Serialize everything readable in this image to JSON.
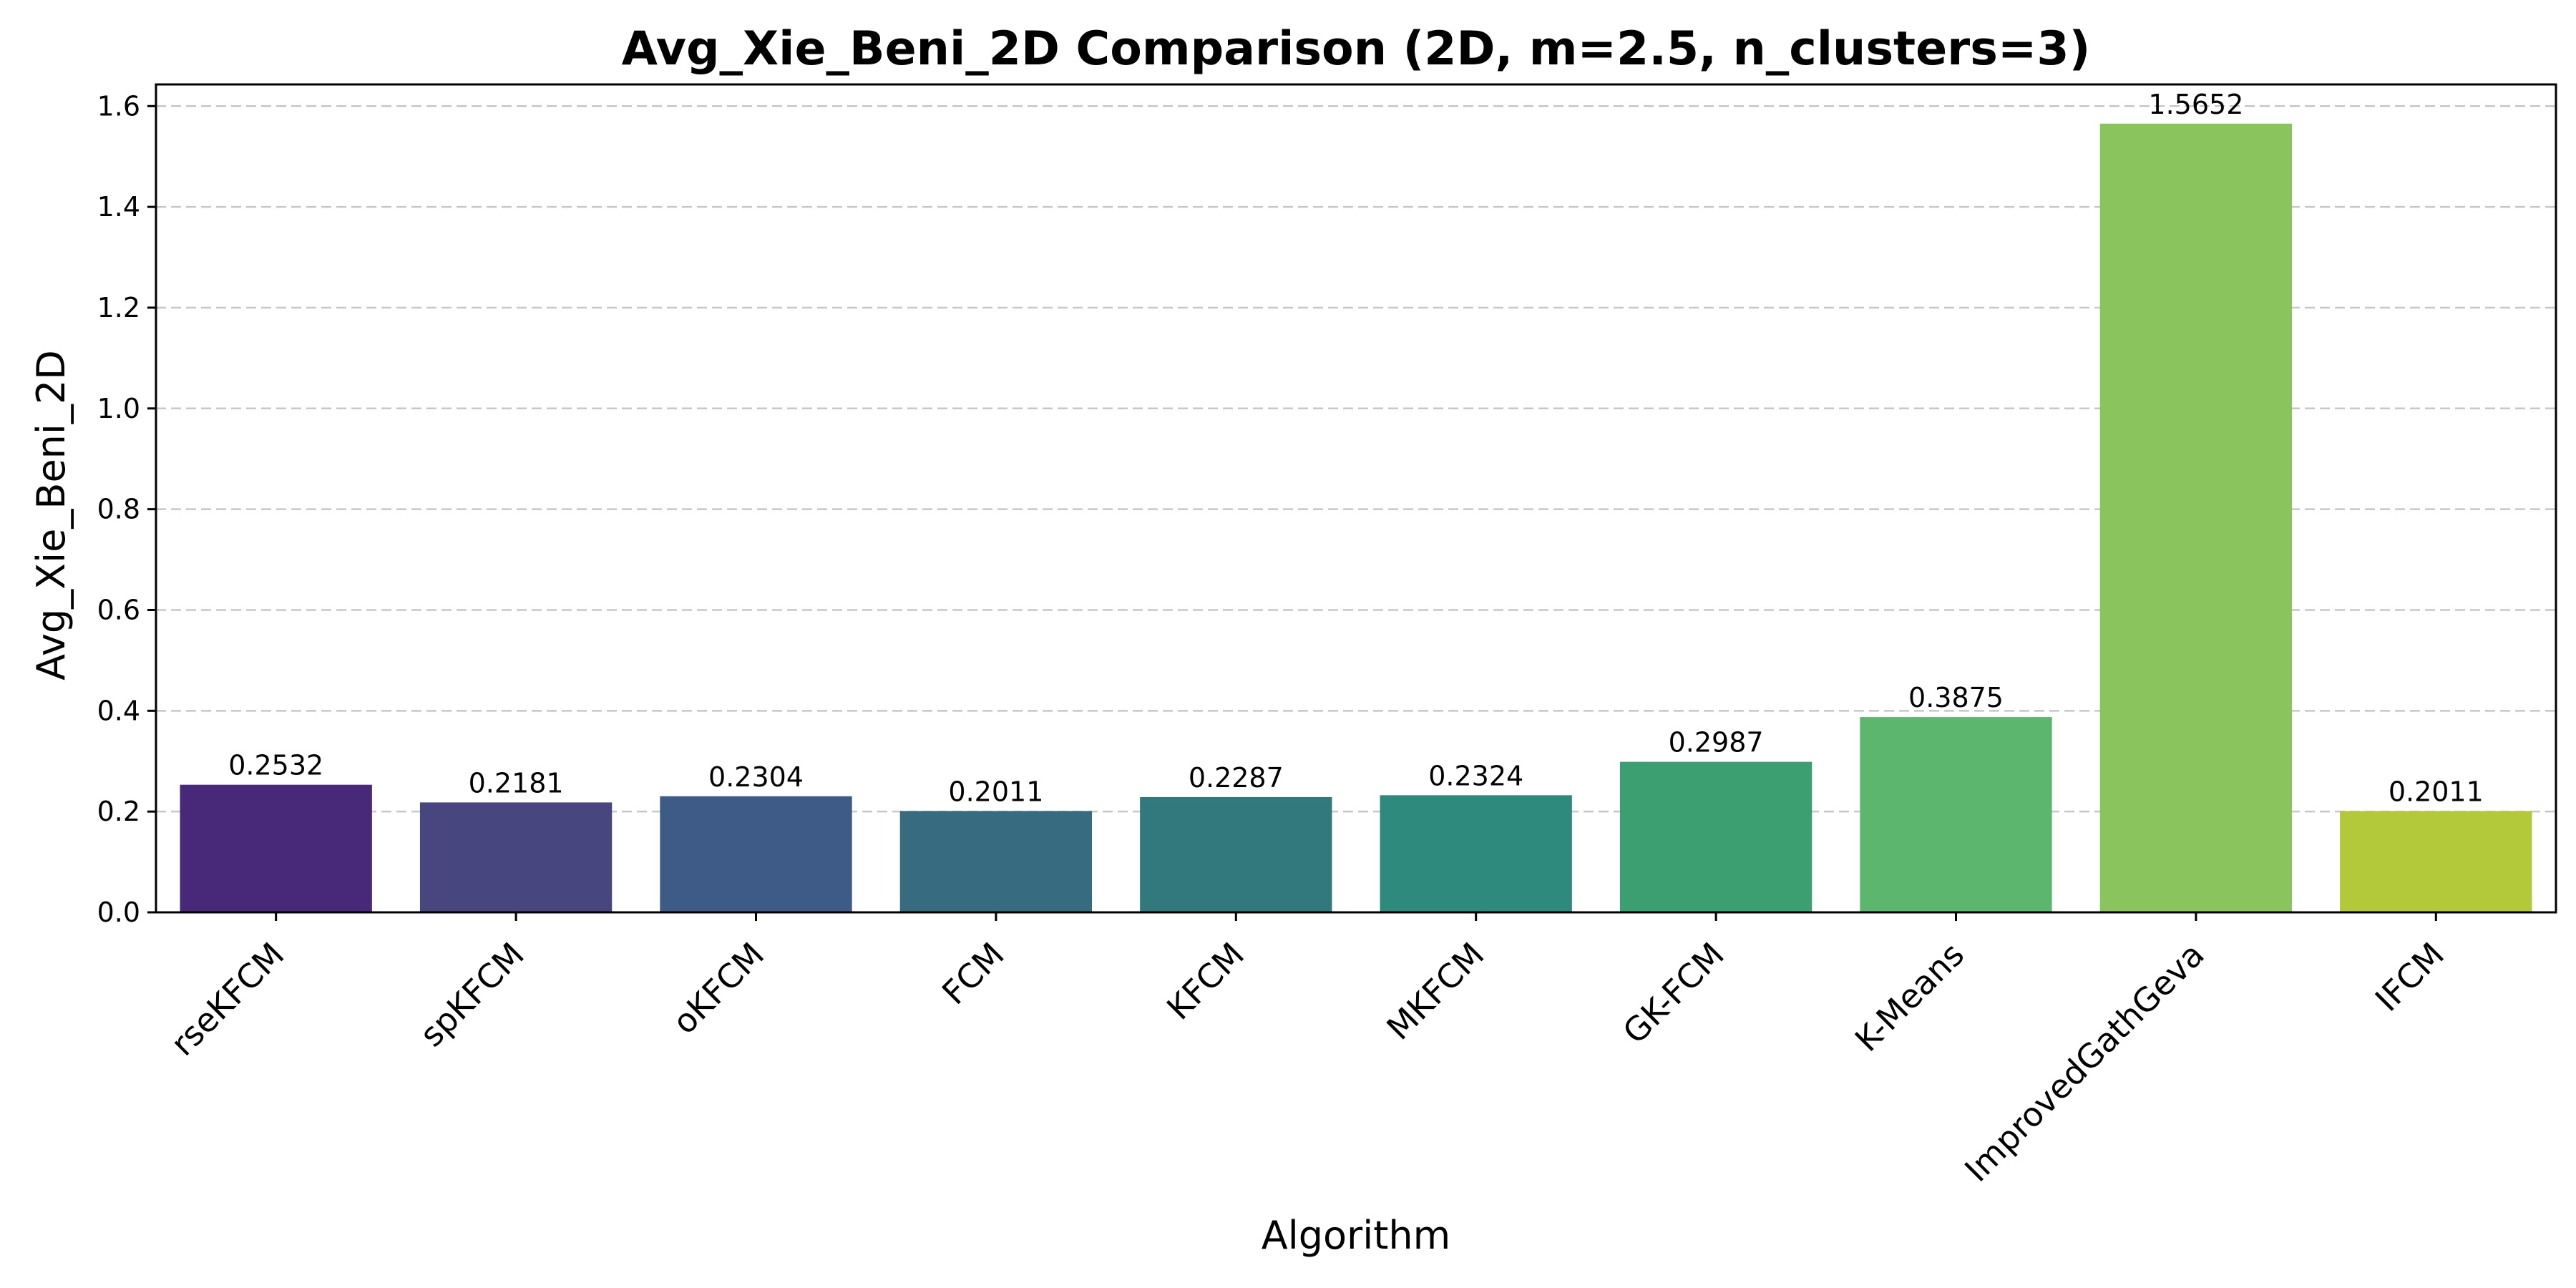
{
  "chart_data": {
    "type": "bar",
    "title": "Avg_Xie_Beni_2D Comparison (2D, m=2.5, n_clusters=3)",
    "xlabel": "Algorithm",
    "ylabel": "Avg_Xie_Beni_2D",
    "ylim": [
      0,
      1.643
    ],
    "yticks": [
      0.0,
      0.2,
      0.4,
      0.6,
      0.8,
      1.0,
      1.2,
      1.4,
      1.6
    ],
    "ytick_labels": [
      "0.0",
      "0.2",
      "0.4",
      "0.6",
      "0.8",
      "1.0",
      "1.2",
      "1.4",
      "1.6"
    ],
    "grid": "y, dashed",
    "categories": [
      "rseKFCM",
      "spKFCM",
      "oKFCM",
      "FCM",
      "KFCM",
      "MKFCM",
      "GK-FCM",
      "K-Means",
      "ImprovedGathGeva",
      "IFCM"
    ],
    "values": [
      0.2532,
      0.2181,
      0.2304,
      0.2011,
      0.2287,
      0.2324,
      0.2987,
      0.3875,
      1.5652,
      0.2011
    ],
    "value_labels": [
      "0.2532",
      "0.2181",
      "0.2304",
      "0.2011",
      "0.2287",
      "0.2324",
      "0.2987",
      "0.3875",
      "1.5652",
      "0.2011"
    ],
    "colors": [
      "#482878",
      "#47467e",
      "#3e5a87",
      "#366b80",
      "#32797e",
      "#2d8a7c",
      "#3b9f72",
      "#5db66e",
      "#89c55c",
      "#b3c93a"
    ]
  }
}
